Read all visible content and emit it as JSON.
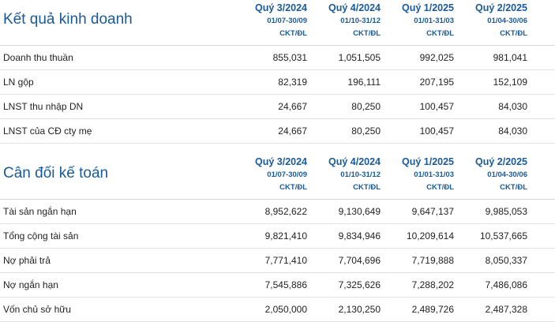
{
  "columns": [
    {
      "quarter": "Quý 3/2024",
      "period": "01/07-30/09",
      "unit": "CKT/ĐL"
    },
    {
      "quarter": "Quý 4/2024",
      "period": "01/10-31/12",
      "unit": "CKT/ĐL"
    },
    {
      "quarter": "Quý 1/2025",
      "period": "01/01-31/03",
      "unit": "CKT/ĐL"
    },
    {
      "quarter": "Quý 2/2025",
      "period": "01/04-30/06",
      "unit": "CKT/ĐL"
    }
  ],
  "business_results": {
    "title": "Kết quả kinh doanh",
    "rows": [
      {
        "label": "Doanh thu thuần",
        "values": [
          "855,031",
          "1,051,505",
          "992,025",
          "981,041"
        ]
      },
      {
        "label": "LN gộp",
        "values": [
          "82,319",
          "196,111",
          "207,195",
          "152,109"
        ]
      },
      {
        "label": "LNST thu nhập DN",
        "values": [
          "24,667",
          "80,250",
          "100,457",
          "84,030"
        ]
      },
      {
        "label": "LNST của CĐ cty mẹ",
        "values": [
          "24,667",
          "80,250",
          "100,457",
          "84,030"
        ]
      }
    ]
  },
  "balance_sheet": {
    "title": "Cân đối kế toán",
    "rows": [
      {
        "label": "Tài sản ngắn hạn",
        "values": [
          "8,952,622",
          "9,130,649",
          "9,647,137",
          "9,985,053"
        ]
      },
      {
        "label": "Tổng cộng tài sản",
        "values": [
          "9,821,410",
          "9,834,946",
          "10,209,614",
          "10,537,665"
        ]
      },
      {
        "label": "Nợ phải trả",
        "values": [
          "7,771,410",
          "7,704,696",
          "7,719,888",
          "8,050,337"
        ]
      },
      {
        "label": "Nợ ngắn hạn",
        "values": [
          "7,545,886",
          "7,325,626",
          "7,288,202",
          "7,486,086"
        ]
      },
      {
        "label": "Vốn chủ sở hữu",
        "values": [
          "2,050,000",
          "2,130,250",
          "2,489,726",
          "2,487,328"
        ]
      }
    ]
  }
}
